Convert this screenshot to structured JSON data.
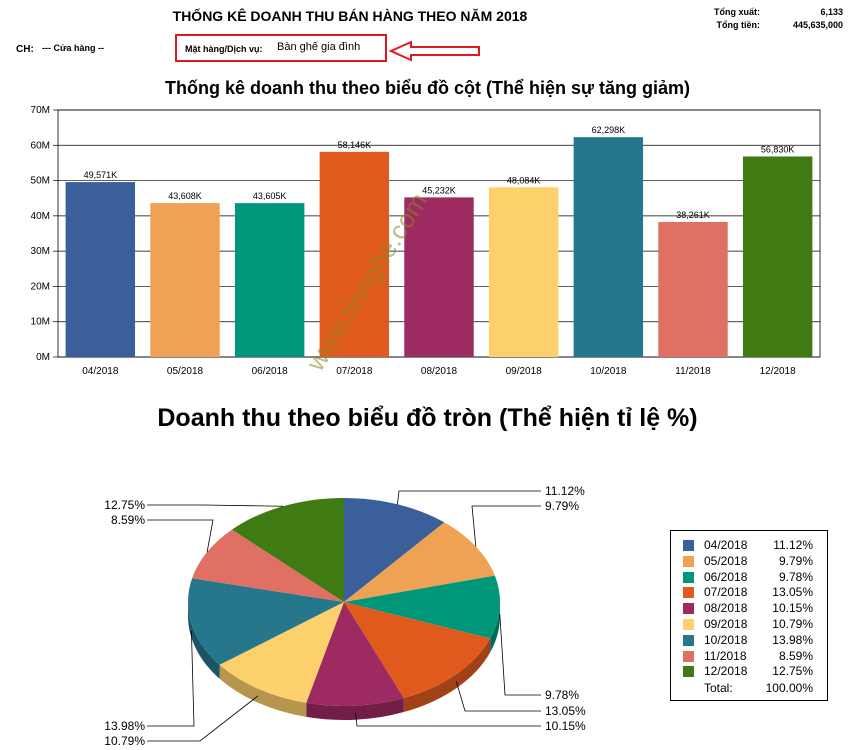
{
  "header": {
    "title": "THỐNG KÊ DOANH THU BÁN HÀNG THEO NĂM 2018",
    "total_export_label": "Tổng xuất:",
    "total_export_value": "6,133",
    "total_money_label": "Tổng tiền:",
    "total_money_value": "445,635,000",
    "store_label": "CH:",
    "store_value": "--- Cửa hàng --",
    "product_label": "Mặt hàng/Dịch vụ:",
    "product_value": "Bàn ghế gia đình"
  },
  "watermark": "www.tinnghe.com",
  "chart_data": [
    {
      "type": "bar",
      "title": "Thống kê doanh thu theo biểu đồ cột (Thể hiện sự tăng giảm)",
      "categories": [
        "04/2018",
        "05/2018",
        "06/2018",
        "07/2018",
        "08/2018",
        "09/2018",
        "10/2018",
        "11/2018",
        "12/2018"
      ],
      "values": [
        49571,
        43608,
        43605,
        58146,
        45232,
        48084,
        62298,
        38261,
        56830
      ],
      "value_labels": [
        "49,571K",
        "43,608K",
        "43,605K",
        "58,146K",
        "45,232K",
        "48,084K",
        "62,298K",
        "38,261K",
        "56,830K"
      ],
      "colors": [
        "#3a5f9a",
        "#f0a254",
        "#00967a",
        "#e05a1e",
        "#9e2a62",
        "#fcd06a",
        "#26768c",
        "#e07064",
        "#3f7a12"
      ],
      "ylim": [
        0,
        70000
      ],
      "yticks": [
        0,
        10000,
        20000,
        30000,
        40000,
        50000,
        60000,
        70000
      ],
      "ytick_labels": [
        "0M",
        "10M",
        "20M",
        "30M",
        "40M",
        "50M",
        "60M",
        "70M"
      ],
      "grid": true,
      "xlabel": "",
      "ylabel": ""
    },
    {
      "type": "pie",
      "title": "Doanh thu theo biểu đồ tròn (Thể hiện tỉ lệ %)",
      "labels": [
        "04/2018",
        "05/2018",
        "06/2018",
        "07/2018",
        "08/2018",
        "09/2018",
        "10/2018",
        "11/2018",
        "12/2018"
      ],
      "values": [
        11.12,
        9.79,
        9.78,
        13.05,
        10.15,
        10.79,
        13.98,
        8.59,
        12.75
      ],
      "value_labels": [
        "11.12%",
        "9.79%",
        "9.78%",
        "13.05%",
        "10.15%",
        "10.79%",
        "13.98%",
        "8.59%",
        "12.75%"
      ],
      "colors": [
        "#3a5f9a",
        "#f0a254",
        "#00967a",
        "#e05a1e",
        "#9e2a62",
        "#fcd06a",
        "#26768c",
        "#e07064",
        "#3f7a12"
      ],
      "legend": {
        "placement": "right",
        "total_label": "Total:",
        "total_value": "100.00%"
      }
    }
  ]
}
